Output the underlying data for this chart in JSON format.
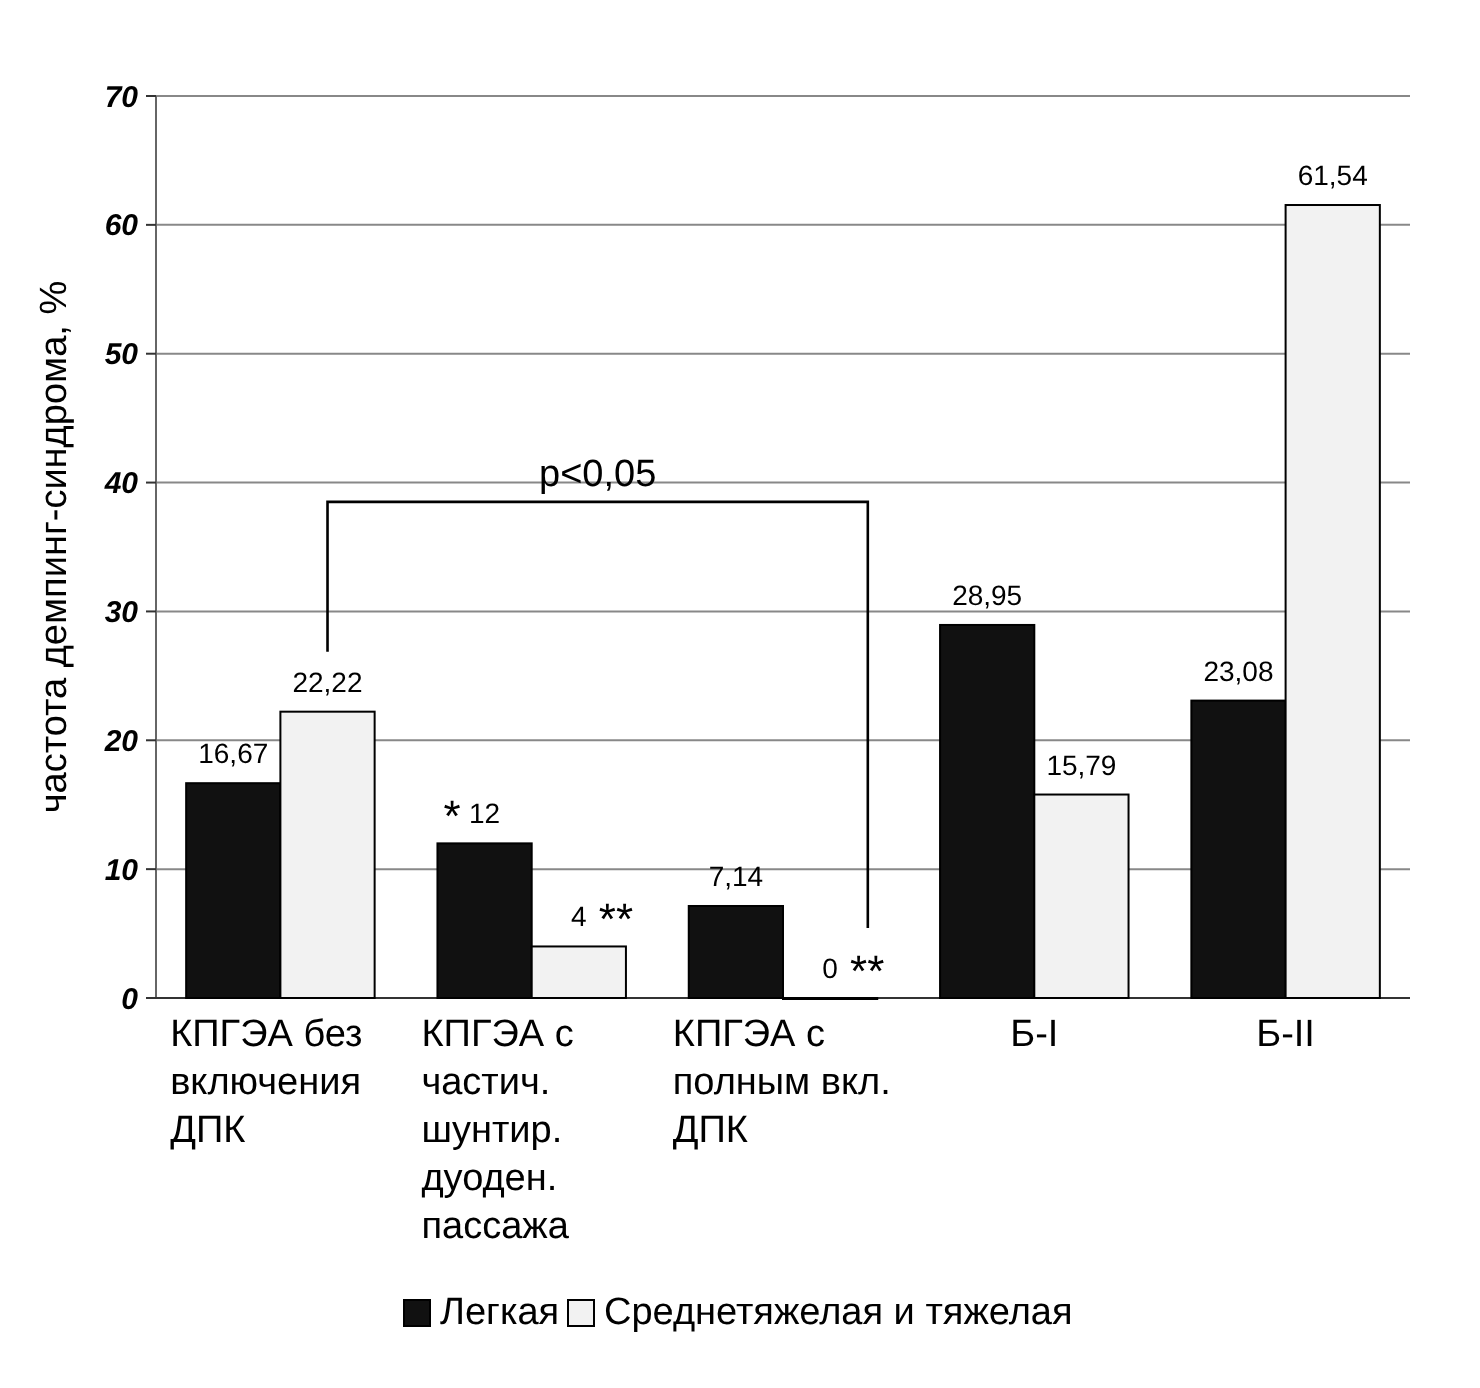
{
  "chart_data": {
    "type": "bar",
    "ylabel": "частота демпинг-синдрома, %",
    "categories": [
      "КПГЭА без включения ДПК",
      "КПГЭА с частич. шунтир. дуоден. пассажа",
      "КПГЭА с полным вкл. ДПК",
      "Б-I",
      "Б-II"
    ],
    "series": [
      {
        "name": "Легкая",
        "color": "#111111",
        "values": [
          16.67,
          12,
          7.14,
          28.95,
          23.08
        ],
        "value_labels": [
          "16,67",
          "12",
          "7,14",
          "28,95",
          "23,08"
        ]
      },
      {
        "name": "Среднетяжелая и тяжелая",
        "color": "#f2f2f2",
        "values": [
          22.22,
          4,
          0,
          15.79,
          61.54
        ],
        "value_labels": [
          "22,22",
          "4",
          "0",
          "15,79",
          "61,54"
        ]
      }
    ],
    "ylim": [
      0,
      70
    ],
    "yticks": [
      0,
      10,
      20,
      30,
      40,
      50,
      60,
      70
    ],
    "grid": "y",
    "legend": "bottom",
    "annotations": [
      "p<0,05",
      {
        "text": "*",
        "x": "КПГЭА с частич. шунтир. дуоден. пассажа",
        "y": 12
      },
      "**",
      {
        "text": "**",
        "x": "КПГЭА с полным вкл. ДПК",
        "y": 0
      }
    ]
  }
}
